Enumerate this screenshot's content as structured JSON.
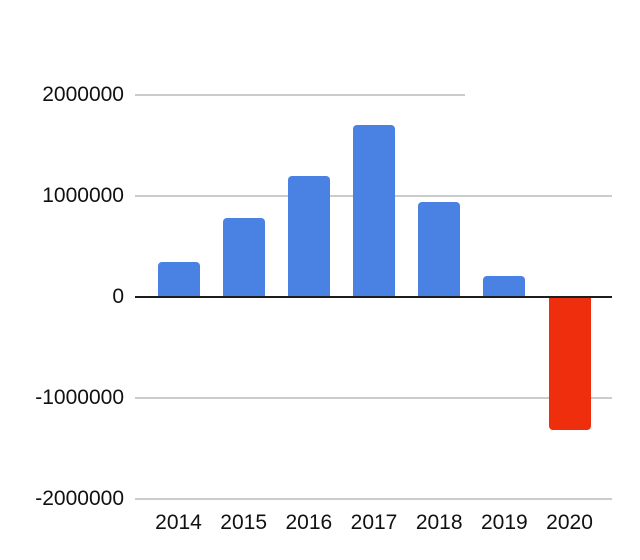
{
  "chart_data": {
    "type": "bar",
    "title": "",
    "xlabel": "",
    "ylabel": "",
    "categories": [
      "2014",
      "2015",
      "2016",
      "2017",
      "2018",
      "2019",
      "2020"
    ],
    "values": [
      350000,
      780000,
      1200000,
      1700000,
      940000,
      210000,
      -1320000
    ],
    "bar_colors": [
      "#4a82e4",
      "#4a82e4",
      "#4a82e4",
      "#4a82e4",
      "#4a82e4",
      "#4a82e4",
      "#ee2e0c"
    ],
    "ylim": [
      -2000000,
      2000000
    ],
    "y_ticks": [
      2000000,
      1000000,
      0,
      -1000000,
      -2000000
    ],
    "y_tick_labels": [
      "2000000",
      "1000000",
      "0",
      "-1000000",
      "-2000000"
    ],
    "grid": true,
    "legend": "none"
  },
  "colors": {
    "background": "#ffffff",
    "bar_positive": "#4a82e4",
    "bar_negative": "#ee2e0c",
    "gridline": "#cccccc",
    "zero_line": "#1d1d1d",
    "label_text": "#111111"
  }
}
